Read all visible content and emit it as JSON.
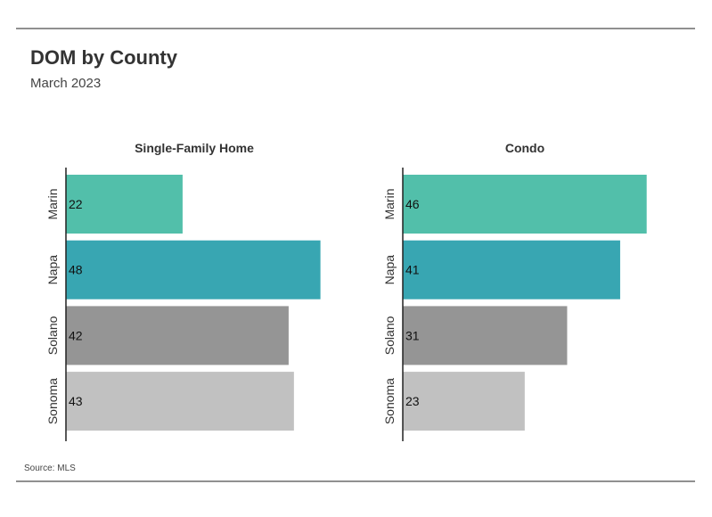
{
  "title": "DOM by County",
  "subtitle": "March 2023",
  "source": "Source: MLS",
  "categories": [
    "Marin",
    "Napa",
    "Solano",
    "Sonoma"
  ],
  "category_colors": [
    "#52bfaa",
    "#38a6b2",
    "#959595",
    "#c1c1c1"
  ],
  "chart_data": [
    {
      "type": "bar",
      "orientation": "horizontal",
      "title": "Single-Family Home",
      "categories": [
        "Marin",
        "Napa",
        "Solano",
        "Sonoma"
      ],
      "values": [
        22,
        48,
        42,
        43
      ],
      "xlim": [
        0,
        50
      ],
      "grid": false
    },
    {
      "type": "bar",
      "orientation": "horizontal",
      "title": "Condo",
      "categories": [
        "Marin",
        "Napa",
        "Solano",
        "Sonoma"
      ],
      "values": [
        46,
        41,
        31,
        23
      ],
      "xlim": [
        0,
        50
      ],
      "grid": false
    }
  ]
}
